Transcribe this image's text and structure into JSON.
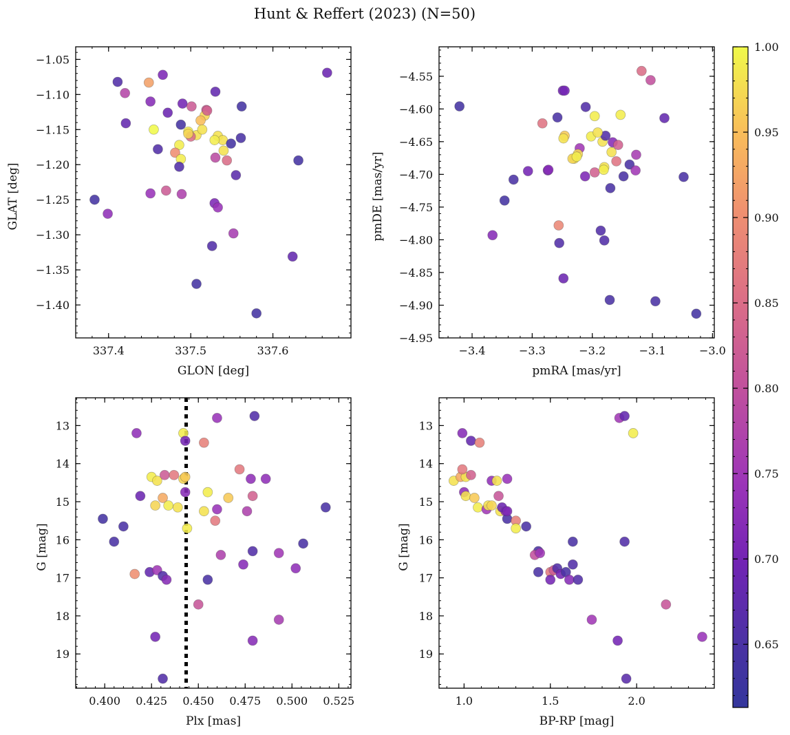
{
  "title": "Hunt & Reffert (2023) (N=50)",
  "colorbar": {
    "min": 0.613,
    "max": 1.0,
    "ticks": [
      "0.65",
      "0.70",
      "0.75",
      "0.80",
      "0.85",
      "0.90",
      "0.95",
      "1.00"
    ],
    "tick_values": [
      0.65,
      0.7,
      0.75,
      0.8,
      0.85,
      0.9,
      0.95,
      1.0
    ],
    "colormap": "plasma"
  },
  "chart_data": [
    {
      "type": "scatter",
      "xlabel": "GLON [deg]",
      "ylabel": "GLAT [deg]",
      "xlim": [
        337.36,
        337.695
      ],
      "ylim": [
        -1.447,
        -1.032
      ],
      "xticks": [
        337.4,
        337.5,
        337.6
      ],
      "xtick_labels": [
        "337.4",
        "337.5",
        "337.6"
      ],
      "yticks": [
        -1.05,
        -1.1,
        -1.15,
        -1.2,
        -1.25,
        -1.3,
        -1.35,
        -1.4
      ],
      "ytick_labels": [
        "−1.05",
        "−1.10",
        "−1.15",
        "−1.20",
        "−1.25",
        "−1.30",
        "−1.35",
        "−1.40"
      ],
      "x": [
        337.411,
        337.42,
        337.449,
        337.466,
        337.451,
        337.49,
        337.472,
        337.501,
        337.519,
        337.53,
        337.421,
        337.455,
        337.488,
        337.517,
        337.507,
        337.533,
        337.497,
        337.46,
        337.486,
        337.539,
        337.549,
        337.562,
        337.561,
        337.481,
        337.54,
        337.53,
        337.488,
        337.544,
        337.486,
        337.555,
        337.631,
        337.666,
        337.383,
        337.399,
        337.451,
        337.47,
        337.489,
        337.529,
        337.533,
        337.552,
        337.526,
        337.624,
        337.507,
        337.58,
        337.5,
        337.512,
        337.514,
        337.497,
        337.529,
        337.52
      ],
      "y": [
        -1.082,
        -1.098,
        -1.083,
        -1.072,
        -1.11,
        -1.113,
        -1.126,
        -1.117,
        -1.122,
        -1.096,
        -1.141,
        -1.15,
        -1.143,
        -1.13,
        -1.158,
        -1.159,
        -1.153,
        -1.178,
        -1.172,
        -1.165,
        -1.17,
        -1.117,
        -1.162,
        -1.183,
        -1.18,
        -1.19,
        -1.192,
        -1.194,
        -1.203,
        -1.215,
        -1.194,
        -1.069,
        -1.25,
        -1.27,
        -1.241,
        -1.237,
        -1.242,
        -1.255,
        -1.261,
        -1.298,
        -1.316,
        -1.331,
        -1.37,
        -1.412,
        -1.16,
        -1.137,
        -1.15,
        -1.156,
        -1.165,
        -1.123
      ],
      "c": [
        0.66,
        0.78,
        0.92,
        0.71,
        0.72,
        0.7,
        0.69,
        0.82,
        0.82,
        0.68,
        0.68,
        1.0,
        0.64,
        0.97,
        0.98,
        0.98,
        0.99,
        0.66,
        0.99,
        0.98,
        0.64,
        0.64,
        0.65,
        0.9,
        0.98,
        0.79,
        0.99,
        0.85,
        0.66,
        0.67,
        0.64,
        0.69,
        0.64,
        0.73,
        0.74,
        0.82,
        0.77,
        0.71,
        0.74,
        0.76,
        0.66,
        0.68,
        0.64,
        0.64,
        0.85,
        0.95,
        0.98,
        0.97,
        0.99,
        0.83
      ]
    },
    {
      "type": "scatter",
      "xlabel": "pmRA [mas/yr]",
      "ylabel": "pmDE [mas/yr]",
      "xlim": [
        -3.455,
        -2.997
      ],
      "ylim": [
        -4.95,
        -4.505
      ],
      "xticks": [
        -3.4,
        -3.3,
        -3.2,
        -3.1,
        -3.0
      ],
      "xtick_labels": [
        "−3.4",
        "−3.3",
        "−3.2",
        "−3.1",
        "−3.0"
      ],
      "yticks": [
        -4.55,
        -4.6,
        -4.65,
        -4.7,
        -4.75,
        -4.8,
        -4.85,
        -4.9,
        -4.95
      ],
      "ytick_labels": [
        "−4.55",
        "−4.60",
        "−4.65",
        "−4.70",
        "−4.75",
        "−4.80",
        "−4.85",
        "−4.90",
        "−4.95"
      ],
      "x": [
        -3.421,
        -3.118,
        -3.103,
        -3.249,
        -3.258,
        -3.211,
        -3.283,
        -3.246,
        -3.196,
        -3.153,
        -3.08,
        -3.202,
        -3.221,
        -3.183,
        -3.178,
        -3.166,
        -3.157,
        -3.168,
        -3.248,
        -3.224,
        -3.18,
        -3.23,
        -3.233,
        -3.196,
        -3.181,
        -3.274,
        -3.307,
        -3.273,
        -3.212,
        -3.17,
        -3.138,
        -3.148,
        -3.127,
        -3.048,
        -3.331,
        -3.346,
        -3.366,
        -3.256,
        -3.255,
        -3.186,
        -3.18,
        -3.248,
        -3.171,
        -3.095,
        -3.027,
        -3.246,
        -3.226,
        -3.128,
        -3.191,
        -3.16
      ],
      "y": [
        -4.596,
        -4.542,
        -4.556,
        -4.572,
        -4.613,
        -4.597,
        -4.622,
        -4.641,
        -4.611,
        -4.609,
        -4.614,
        -4.642,
        -4.66,
        -4.65,
        -4.641,
        -4.651,
        -4.655,
        -4.666,
        -4.645,
        -4.669,
        -4.689,
        -4.676,
        -4.676,
        -4.697,
        -4.693,
        -4.694,
        -4.695,
        -4.693,
        -4.703,
        -4.721,
        -4.685,
        -4.703,
        -4.67,
        -4.704,
        -4.708,
        -4.74,
        -4.793,
        -4.778,
        -4.805,
        -4.786,
        -4.801,
        -4.859,
        -4.892,
        -4.894,
        -4.913,
        -4.572,
        -4.673,
        -4.694,
        -4.636,
        -4.68
      ],
      "c": [
        0.64,
        0.85,
        0.8,
        0.7,
        0.65,
        0.66,
        0.86,
        0.96,
        0.99,
        0.99,
        0.68,
        0.99,
        0.75,
        0.98,
        0.66,
        0.72,
        0.83,
        0.98,
        0.98,
        0.97,
        0.98,
        0.98,
        0.97,
        0.83,
        0.99,
        0.71,
        0.7,
        0.72,
        0.71,
        0.65,
        0.65,
        0.65,
        0.76,
        0.65,
        0.65,
        0.64,
        0.72,
        0.89,
        0.66,
        0.66,
        0.66,
        0.69,
        0.65,
        0.65,
        0.64,
        0.7,
        0.99,
        0.75,
        0.98,
        0.86
      ]
    },
    {
      "type": "scatter",
      "xlabel": "Plx [mas]",
      "ylabel": "G [mag]",
      "xlim": [
        0.3845,
        0.5315
      ],
      "ylim": [
        19.9,
        12.27
      ],
      "xticks": [
        0.4,
        0.425,
        0.45,
        0.475,
        0.5,
        0.525
      ],
      "xtick_labels": [
        "0.400",
        "0.425",
        "0.450",
        "0.475",
        "0.500",
        "0.525"
      ],
      "yticks": [
        13,
        14,
        15,
        16,
        17,
        18,
        19
      ],
      "ytick_labels": [
        "13",
        "14",
        "15",
        "16",
        "17",
        "18",
        "19"
      ],
      "vline": 0.4435,
      "x": [
        0.417,
        0.442,
        0.443,
        0.453,
        0.46,
        0.48,
        0.425,
        0.432,
        0.437,
        0.428,
        0.442,
        0.472,
        0.478,
        0.486,
        0.419,
        0.431,
        0.443,
        0.455,
        0.466,
        0.479,
        0.427,
        0.434,
        0.439,
        0.453,
        0.46,
        0.476,
        0.518,
        0.399,
        0.41,
        0.459,
        0.405,
        0.506,
        0.462,
        0.479,
        0.493,
        0.416,
        0.424,
        0.428,
        0.431,
        0.433,
        0.455,
        0.474,
        0.502,
        0.45,
        0.493,
        0.427,
        0.479,
        0.431,
        0.444,
        0.443
      ],
      "y": [
        13.2,
        13.2,
        13.4,
        13.45,
        12.8,
        12.75,
        14.35,
        14.3,
        14.3,
        14.45,
        14.4,
        14.15,
        14.4,
        14.4,
        14.85,
        14.9,
        14.75,
        14.75,
        14.9,
        14.85,
        15.1,
        15.1,
        15.15,
        15.25,
        15.2,
        15.25,
        15.15,
        15.45,
        15.65,
        15.5,
        16.05,
        16.1,
        16.4,
        16.3,
        16.35,
        16.9,
        16.85,
        16.8,
        16.95,
        17.05,
        17.05,
        16.65,
        16.75,
        17.7,
        18.1,
        18.55,
        18.65,
        19.65,
        15.7,
        14.35
      ],
      "c": [
        0.73,
        0.99,
        0.7,
        0.88,
        0.74,
        0.66,
        0.99,
        0.82,
        0.87,
        0.98,
        0.97,
        0.87,
        0.73,
        0.73,
        0.69,
        0.93,
        0.72,
        0.99,
        0.96,
        0.83,
        0.97,
        0.99,
        0.98,
        0.98,
        0.74,
        0.77,
        0.65,
        0.64,
        0.65,
        0.87,
        0.65,
        0.65,
        0.77,
        0.66,
        0.75,
        0.9,
        0.68,
        0.75,
        0.66,
        0.72,
        0.65,
        0.72,
        0.73,
        0.81,
        0.76,
        0.7,
        0.72,
        0.66,
        0.99,
        0.96
      ]
    },
    {
      "type": "scatter",
      "xlabel": "BP-RP [mag]",
      "ylabel": "G [mag]",
      "xlim": [
        0.855,
        2.45
      ],
      "ylim": [
        19.9,
        12.27
      ],
      "xticks": [
        1.0,
        1.5,
        2.0
      ],
      "xtick_labels": [
        "1.0",
        "1.5",
        "2.0"
      ],
      "yticks": [
        13,
        14,
        15,
        16,
        17,
        18,
        19
      ],
      "ytick_labels": [
        "13",
        "14",
        "15",
        "16",
        "17",
        "18",
        "19"
      ],
      "x": [
        0.99,
        1.04,
        1.09,
        1.9,
        1.93,
        1.98,
        0.94,
        0.98,
        1.01,
        1.04,
        1.16,
        1.19,
        1.25,
        0.99,
        1.0,
        1.01,
        1.06,
        1.08,
        1.13,
        1.14,
        1.2,
        1.21,
        1.24,
        1.22,
        1.25,
        1.3,
        1.3,
        1.36,
        1.25,
        1.43,
        1.41,
        1.44,
        1.43,
        1.5,
        1.52,
        1.54,
        1.56,
        1.59,
        1.63,
        1.61,
        1.63,
        1.66,
        1.74,
        2.17,
        2.38,
        1.89,
        1.94,
        1.93,
        1.5,
        1.16
      ],
      "y": [
        13.2,
        13.4,
        13.45,
        12.8,
        12.75,
        13.2,
        14.45,
        14.35,
        14.35,
        14.3,
        14.45,
        14.45,
        14.4,
        14.15,
        14.75,
        14.85,
        14.9,
        15.15,
        15.2,
        15.1,
        14.85,
        15.25,
        15.25,
        15.15,
        15.45,
        15.5,
        15.7,
        15.65,
        15.25,
        16.3,
        16.4,
        16.35,
        16.85,
        16.85,
        16.8,
        16.75,
        16.9,
        16.85,
        16.65,
        17.05,
        16.05,
        17.05,
        18.1,
        17.7,
        18.55,
        18.65,
        19.65,
        16.05,
        17.05,
        15.1
      ],
      "c": [
        0.72,
        0.68,
        0.88,
        0.75,
        0.68,
        0.99,
        0.98,
        0.93,
        0.98,
        0.83,
        0.73,
        0.98,
        0.74,
        0.87,
        0.73,
        0.98,
        0.96,
        0.99,
        0.75,
        0.98,
        0.81,
        0.98,
        0.73,
        0.69,
        0.65,
        0.88,
        0.99,
        0.65,
        0.71,
        0.65,
        0.8,
        0.75,
        0.65,
        0.87,
        0.82,
        0.66,
        0.7,
        0.65,
        0.66,
        0.72,
        0.65,
        0.66,
        0.75,
        0.81,
        0.74,
        0.7,
        0.67,
        0.66,
        0.7,
        0.97
      ]
    }
  ]
}
